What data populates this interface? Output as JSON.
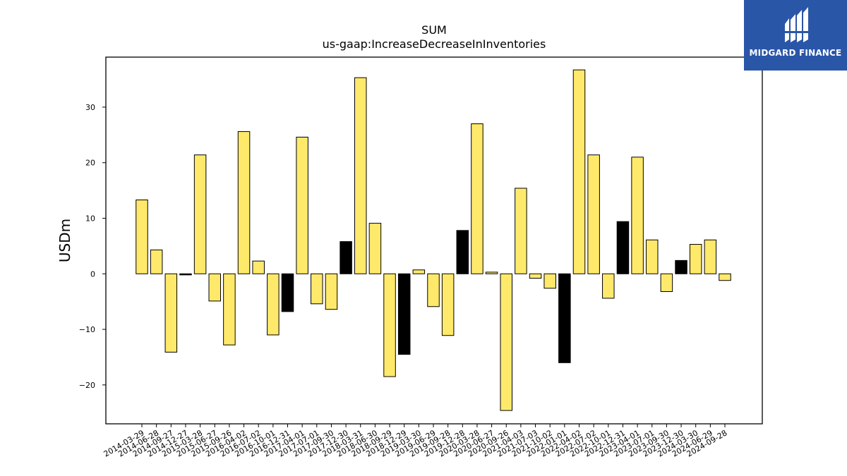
{
  "colors": {
    "positive": "#ffe96b",
    "negative_highlight": "#000000",
    "bar_edge": "#000000",
    "brand": "#2a56a8"
  },
  "brand": {
    "name": "MIDGARD FINANCE",
    "logo_icon": "midgard-m-logo"
  },
  "chart_data": {
    "type": "bar",
    "title": "SUM",
    "subtitle": "us-gaap:IncreaseDecreaseInInventories",
    "xlabel": "",
    "ylabel": "USDm",
    "ylim": [
      -27,
      39
    ],
    "yticks": [
      -20,
      -10,
      0,
      10,
      20,
      30
    ],
    "grid": false,
    "categories": [
      "2014-03-29",
      "2014-06-28",
      "2014-09-27",
      "2014-12-27",
      "2015-03-28",
      "2015-06-27",
      "2015-09-26",
      "2016-04-02",
      "2016-07-02",
      "2016-10-01",
      "2016-12-31",
      "2017-04-01",
      "2017-07-01",
      "2017-09-30",
      "2017-12-30",
      "2018-03-31",
      "2018-06-30",
      "2018-09-29",
      "2018-12-29",
      "2019-03-30",
      "2019-06-29",
      "2019-09-28",
      "2019-12-28",
      "2020-03-28",
      "2020-06-27",
      "2020-09-26",
      "2021-04-03",
      "2021-07-03",
      "2021-10-02",
      "2022-01-01",
      "2022-04-02",
      "2022-07-02",
      "2022-10-01",
      "2022-12-31",
      "2023-04-01",
      "2023-07-01",
      "2023-09-30",
      "2023-12-30",
      "2024-03-30",
      "2024-06-29",
      "2024-09-28"
    ],
    "values": [
      13.3,
      4.3,
      -14.1,
      -0.2,
      21.4,
      -4.9,
      -12.8,
      25.6,
      2.3,
      -11.0,
      -6.8,
      24.6,
      -5.4,
      -6.4,
      5.8,
      35.3,
      9.1,
      -18.5,
      -14.5,
      0.7,
      -5.9,
      -11.1,
      7.8,
      27.0,
      0.3,
      -24.6,
      15.4,
      -0.8,
      -2.6,
      -16.0,
      36.7,
      21.4,
      -4.4,
      9.4,
      21.0,
      6.1,
      -3.2,
      2.4,
      5.3,
      6.1,
      -1.2
    ],
    "highlight": [
      false,
      false,
      false,
      true,
      false,
      false,
      false,
      false,
      false,
      false,
      true,
      false,
      false,
      false,
      true,
      false,
      false,
      false,
      true,
      false,
      false,
      false,
      true,
      false,
      false,
      false,
      false,
      false,
      false,
      true,
      false,
      false,
      false,
      true,
      false,
      false,
      false,
      true,
      false,
      false,
      false
    ]
  }
}
